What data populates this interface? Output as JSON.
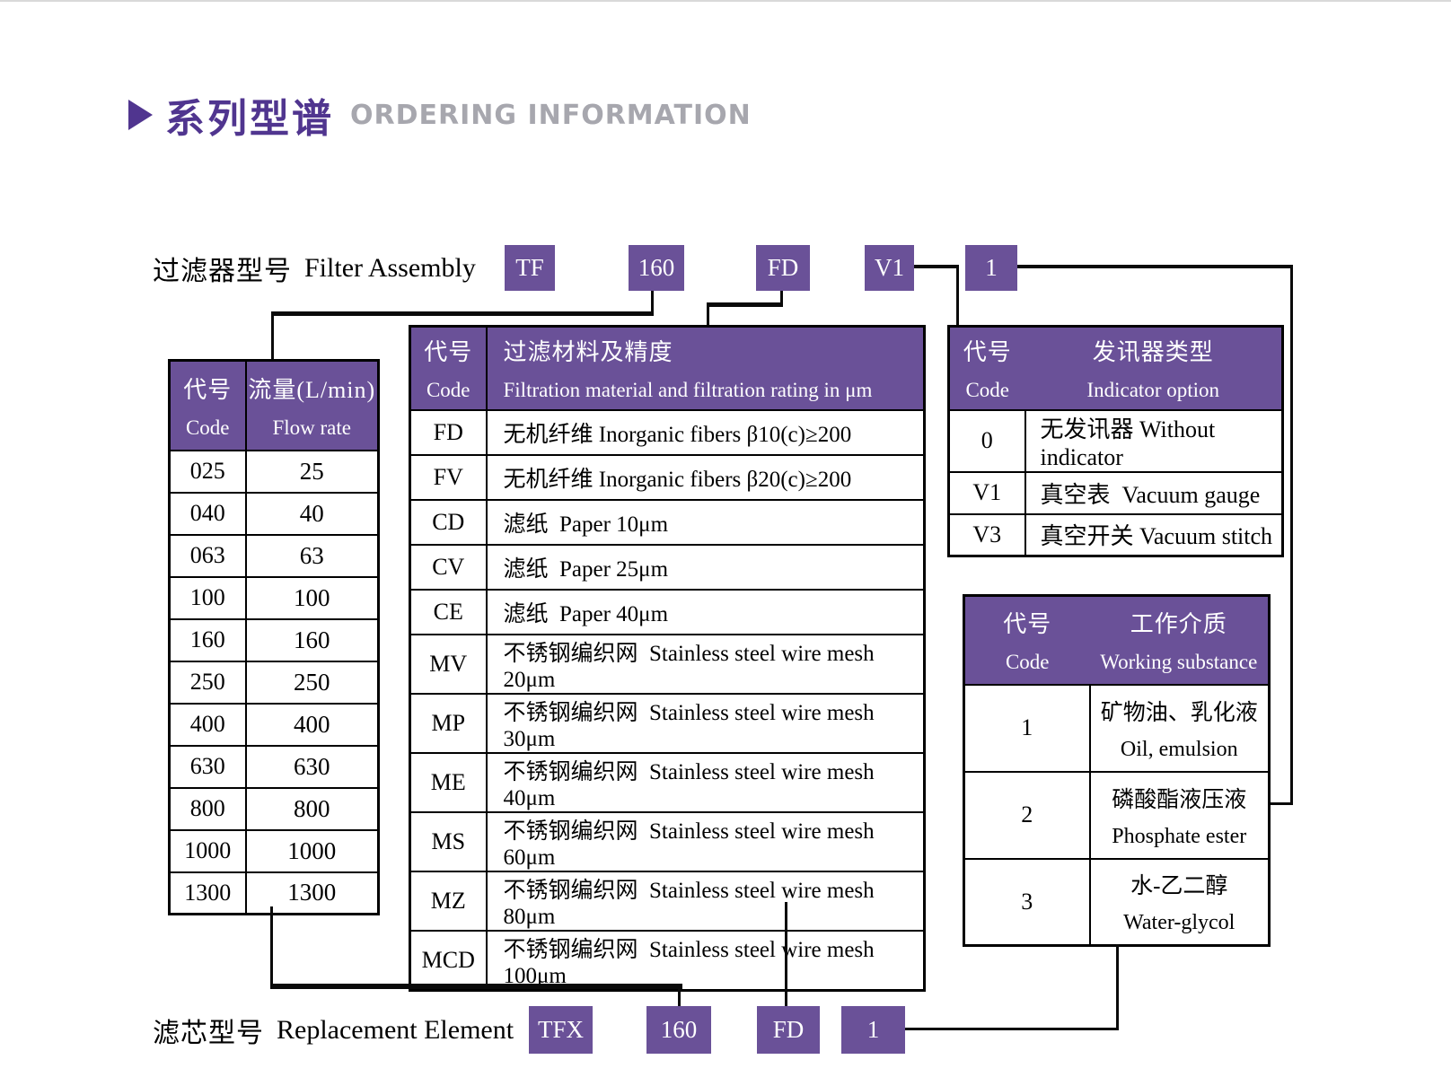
{
  "title": {
    "zh": "系列型谱",
    "en": "ORDERING INFORMATION"
  },
  "colors": {
    "purple": "#6a5198",
    "title_purple": "#50358f",
    "title_gray": "#a7a7ae",
    "line": "#0a0a0a"
  },
  "assembly_row": {
    "label_zh": "过滤器型号",
    "label_en": "Filter Assembly",
    "codes": [
      "TF",
      "160",
      "FD",
      "V1",
      "1"
    ]
  },
  "replacement_row": {
    "label_zh": "滤芯型号",
    "label_en": "Replacement Element",
    "codes": [
      "TFX",
      "160",
      "FD",
      "1"
    ]
  },
  "flow_table": {
    "header": {
      "col1_zh": "代号",
      "col1_en": "Code",
      "col2_zh": "流量(L/min)",
      "col2_en": "Flow rate"
    },
    "rows": [
      [
        "025",
        "25"
      ],
      [
        "040",
        "40"
      ],
      [
        "063",
        "63"
      ],
      [
        "100",
        "100"
      ],
      [
        "160",
        "160"
      ],
      [
        "250",
        "250"
      ],
      [
        "400",
        "400"
      ],
      [
        "630",
        "630"
      ],
      [
        "800",
        "800"
      ],
      [
        "1000",
        "1000"
      ],
      [
        "1300",
        "1300"
      ]
    ]
  },
  "filtration_table": {
    "header": {
      "col1_zh": "代号",
      "col1_en": "Code",
      "col2_zh": "过滤材料及精度",
      "col2_en": "Filtration material and filtration rating in μm"
    },
    "rows": [
      [
        "FD",
        "无机纤维 Inorganic fibers β10(c)≥200"
      ],
      [
        "FV",
        "无机纤维 Inorganic fibers β20(c)≥200"
      ],
      [
        "CD",
        "滤纸  Paper 10μm"
      ],
      [
        "CV",
        "滤纸  Paper 25μm"
      ],
      [
        "CE",
        "滤纸  Paper 40μm"
      ],
      [
        "MV",
        "不锈钢编织网  Stainless steel wire mesh 20μm"
      ],
      [
        "MP",
        "不锈钢编织网  Stainless steel wire mesh 30μm"
      ],
      [
        "ME",
        "不锈钢编织网  Stainless steel wire mesh 40μm"
      ],
      [
        "MS",
        "不锈钢编织网  Stainless steel wire mesh 60μm"
      ],
      [
        "MZ",
        "不锈钢编织网  Stainless steel wire mesh 80μm"
      ],
      [
        "MCD",
        "不锈钢编织网  Stainless steel wire mesh 100μm"
      ]
    ]
  },
  "indicator_table": {
    "header": {
      "col1_zh": "代号",
      "col1_en": "Code",
      "col2_zh": "发讯器类型",
      "col2_en": "Indicator option"
    },
    "rows": [
      [
        "0",
        "无发讯器 Without indicator"
      ],
      [
        "V1",
        "真空表  Vacuum gauge"
      ],
      [
        "V3",
        "真空开关 Vacuum stitch"
      ]
    ]
  },
  "substance_table": {
    "header": {
      "col1_zh": "代号",
      "col1_en": "Code",
      "col2_zh": "工作介质",
      "col2_en": "Working substance"
    },
    "rows": [
      [
        "1",
        "矿物油、乳化液",
        "Oil, emulsion"
      ],
      [
        "2",
        "磷酸酯液压液",
        "Phosphate ester"
      ],
      [
        "3",
        "水-乙二醇",
        "Water-glycol"
      ]
    ]
  }
}
